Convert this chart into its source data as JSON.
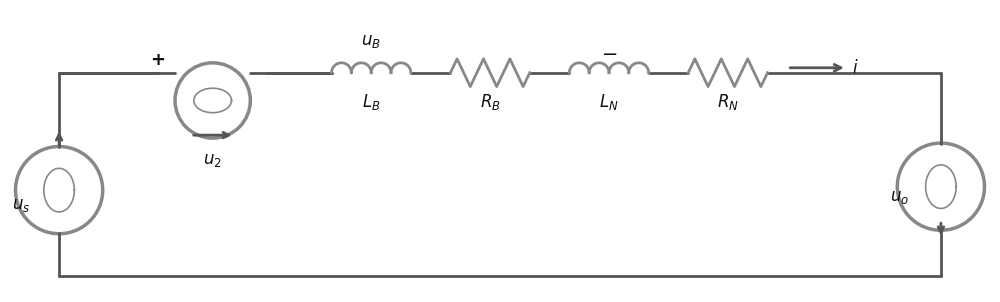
{
  "bg_color": "#ffffff",
  "line_color": "#555555",
  "line_width": 2.0,
  "component_color": "#888888",
  "label_color": "#111111",
  "fig_width": 10.0,
  "fig_height": 3.02,
  "dpi": 100
}
